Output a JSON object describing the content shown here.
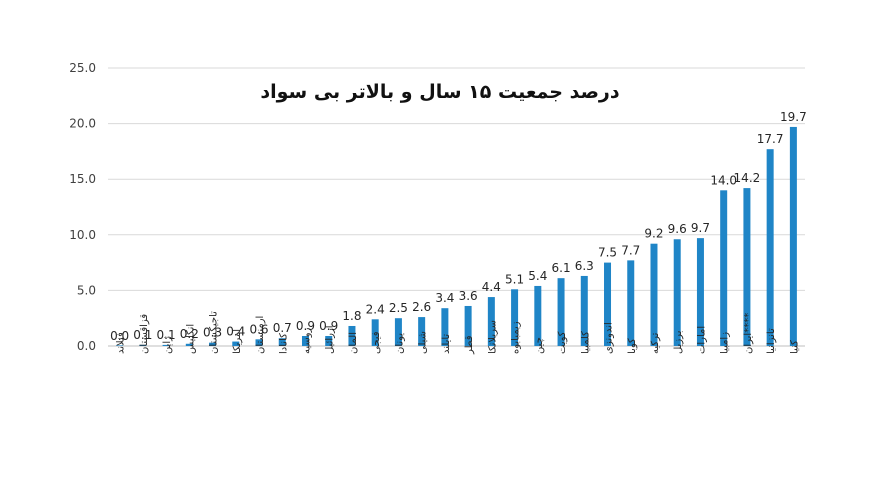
{
  "chart_data": {
    "type": "bar",
    "title": "درصد جمعیت ۱۵ سال و بالاتر بی سواد",
    "xlabel": "",
    "ylabel": "",
    "ylim": [
      0,
      25
    ],
    "yticks": [
      "0.0",
      "5.0",
      "10.0",
      "15.0",
      "20.0",
      "25.0"
    ],
    "grid": true,
    "legend": "none",
    "bar_color": "#1f85c7",
    "categories": [
      "فنلاند",
      "قزاقستان",
      "ژاپن",
      "انگلیس",
      "تاجیکستان",
      "امریکا",
      "ارمنستان",
      "کانادا",
      "روسیه",
      "ازرائیل",
      "المان",
      "فیجی",
      "یونان",
      "شیلی",
      "تایلند",
      "قطر",
      "سریلانکا",
      "زیمبابوه",
      "چین",
      "کویت",
      "کلمبیا",
      "اندونزی",
      "کوبا",
      "ترکیه",
      "برزیل",
      "امارات",
      "زامبیا",
      "****ایران",
      "تانزانیا",
      "کنیا"
    ],
    "values": [
      0.0,
      0.1,
      0.1,
      0.2,
      0.3,
      0.4,
      0.6,
      0.7,
      0.9,
      0.9,
      1.8,
      2.4,
      2.5,
      2.6,
      3.4,
      3.6,
      4.4,
      5.1,
      5.4,
      6.1,
      6.3,
      7.5,
      7.7,
      9.2,
      9.6,
      9.7,
      14.0,
      14.2,
      17.7,
      19.7
    ],
    "data_labels": [
      "0.0",
      "0.1",
      "0.1",
      "0.2",
      "0.3",
      "0.4",
      "0.6",
      "0.7",
      "0.9",
      "0.9",
      "1.8",
      "2.4",
      "2.5",
      "2.6",
      "3.4",
      "3.6",
      "4.4",
      "5.1",
      "5.4",
      "6.1",
      "6.3",
      "7.5",
      "7.7",
      "9.2",
      "9.6",
      "9.7",
      "14.0",
      "14.2",
      "17.7",
      "19.7"
    ]
  }
}
